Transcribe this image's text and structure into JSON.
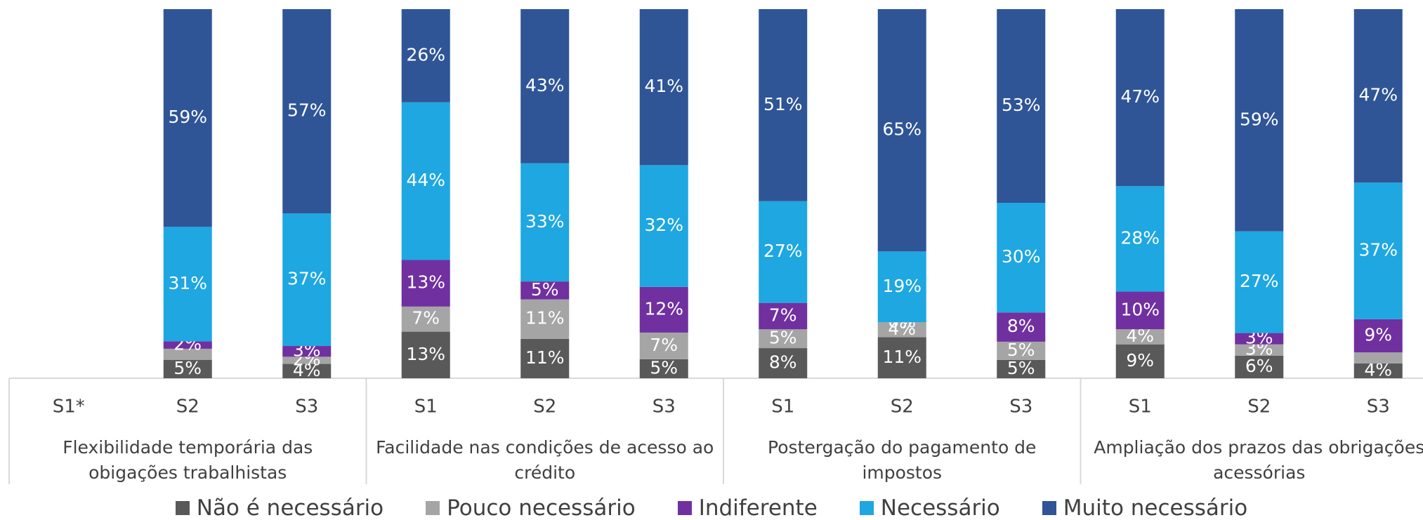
{
  "chart_data": {
    "type": "stacked_bar_percent",
    "categories": [
      "S1*",
      "S2",
      "S3",
      "S1",
      "S2",
      "S3",
      "S1",
      "S2",
      "S3",
      "S1",
      "S2",
      "S3"
    ],
    "groups": [
      "Flexibilidade temporária das obigações trabalhistas",
      "Facilidade nas condições de acesso ao crédito",
      "Postergação do pagamento de impostos",
      "Ampliação dos prazos das obrigações acessórias"
    ],
    "series": [
      {
        "name": "Não é necessário",
        "color": "#595959",
        "values": [
          null,
          5,
          4,
          13,
          11,
          5,
          8,
          11,
          5,
          9,
          6,
          4
        ],
        "value_labels": [
          null,
          "5%",
          "4%",
          "13%",
          "11%",
          "5%",
          "8%",
          "11%",
          "5%",
          "9%",
          "6%",
          "4%"
        ]
      },
      {
        "name": "Pouco necessário",
        "color": "#a5a5a5",
        "values": [
          null,
          3,
          2,
          7,
          11,
          7,
          5,
          4,
          5,
          4,
          3,
          3
        ],
        "value_labels": [
          null,
          null,
          "2%",
          "7%",
          "11%",
          "7%",
          "5%",
          "4%",
          "5%",
          "4%",
          "3%",
          null
        ]
      },
      {
        "name": "Indiferente",
        "color": "#7030a0",
        "values": [
          null,
          2,
          3,
          13,
          5,
          12,
          7,
          0,
          8,
          10,
          3,
          9
        ],
        "value_labels": [
          null,
          "2%",
          "3%",
          "13%",
          "5%",
          "12%",
          "7%",
          "0%",
          "8%",
          "10%",
          "3%",
          "9%"
        ]
      },
      {
        "name": "Necessário",
        "color": "#1ea7e1",
        "values": [
          null,
          31,
          37,
          44,
          33,
          32,
          27,
          19,
          30,
          28,
          27,
          37
        ],
        "value_labels": [
          null,
          "31%",
          "37%",
          "44%",
          "33%",
          "32%",
          "27%",
          "19%",
          "30%",
          "28%",
          "27%",
          "37%"
        ]
      },
      {
        "name": "Muito necessário",
        "color": "#2f5597",
        "values": [
          null,
          59,
          57,
          26,
          43,
          41,
          51,
          65,
          53,
          47,
          59,
          47
        ],
        "value_labels": [
          null,
          "59%",
          "57%",
          "26%",
          "43%",
          "41%",
          "51%",
          "65%",
          "53%",
          "47%",
          "59%",
          "47%"
        ]
      }
    ]
  }
}
